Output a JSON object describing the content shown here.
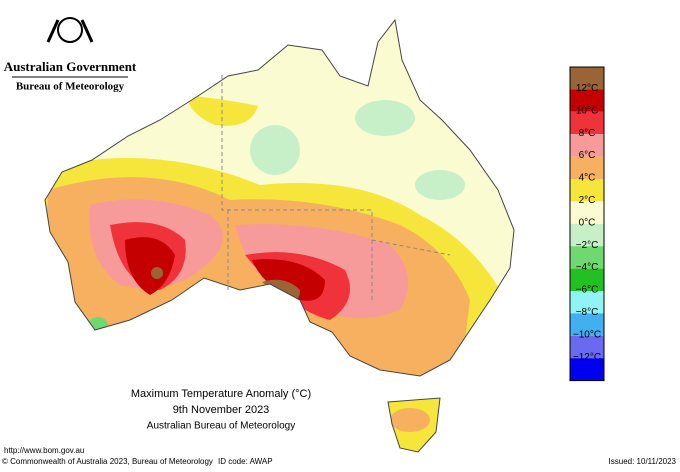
{
  "header": {
    "government": "Australian Government",
    "agency": "Bureau of Meteorology"
  },
  "legend": {
    "colors": [
      "#9a6436",
      "#c40000",
      "#f0323a",
      "#f79a9a",
      "#f6b060",
      "#f6e63c",
      "#fbfbd2",
      "#c8f0c8",
      "#70d870",
      "#22c022",
      "#90f4f4",
      "#40b0f0",
      "#6a6af0",
      "#0000f0"
    ],
    "labels": [
      "12°C",
      "10°C",
      "8°C",
      "6°C",
      "4°C",
      "2°C",
      "0°C",
      "−2°C",
      "−4°C",
      "−6°C",
      "−8°C",
      "−10°C",
      "−12°C"
    ]
  },
  "title": {
    "line1": "Maximum Temperature Anomaly (°C)",
    "line2": "9th November 2023",
    "line3": "Australian Bureau of Meteorology"
  },
  "footer": {
    "url": "http://www.bom.gov.au",
    "copyright": "© Commonwealth of Australia 2023, Bureau of Meteorology",
    "id_code": "ID code: AWAP",
    "issued": "Issued: 10/11/2023"
  }
}
